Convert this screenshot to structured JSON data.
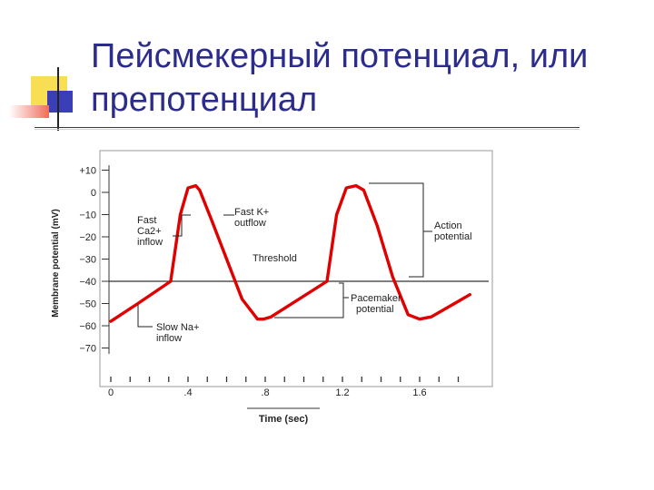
{
  "slide": {
    "title_line1": "Пейсмекерный потенциал, или",
    "title_line2": "препотенциал"
  },
  "colors": {
    "title": "#2c2c8c",
    "curve": "#e00000",
    "accent_yellow": "#f7de52",
    "accent_blue": "#3a3fb8",
    "accent_red": "#f06c5a"
  },
  "chart_data": {
    "type": "line",
    "xlabel": "Time (sec)",
    "ylabel": "Membrane potential (mV)",
    "xlim": [
      0,
      1.9
    ],
    "ylim": [
      -80,
      12
    ],
    "x_ticks": [
      "0",
      ".4",
      ".8",
      "1.2",
      "1.6"
    ],
    "x_tick_values": [
      0,
      0.4,
      0.8,
      1.2,
      1.6
    ],
    "y_ticks": [
      "+10",
      "0",
      "−10",
      "−20",
      "−30",
      "−40",
      "−50",
      "−60",
      "−70"
    ],
    "y_tick_values": [
      10,
      0,
      -10,
      -20,
      -30,
      -40,
      -50,
      -60,
      -70
    ],
    "threshold": -40,
    "series": [
      {
        "x": [
          0,
          0.14,
          0.31,
          0.36,
          0.4,
          0.44,
          0.46,
          0.52,
          0.6,
          0.68,
          0.76,
          0.79,
          0.83,
          1.12,
          1.17,
          1.22,
          1.27,
          1.31,
          1.38,
          1.46,
          1.54,
          1.6,
          1.66,
          1.86
        ],
        "y": [
          -58,
          -50,
          -40,
          -10,
          2,
          3,
          1,
          -12,
          -30,
          -48,
          -57,
          -57,
          -56,
          -40,
          -10,
          2,
          3,
          1,
          -15,
          -38,
          -55,
          -57,
          -56,
          -46
        ]
      }
    ],
    "annotations": {
      "ca": [
        "Fast",
        "Ca2+",
        "inflow"
      ],
      "k": [
        "Fast K+",
        "outflow"
      ],
      "threshold": "Threshold",
      "action": [
        "Action",
        "potential"
      ],
      "pacemaker": [
        "Pacemaker",
        "potential"
      ],
      "na": [
        "Slow Na+",
        "inflow"
      ]
    }
  }
}
